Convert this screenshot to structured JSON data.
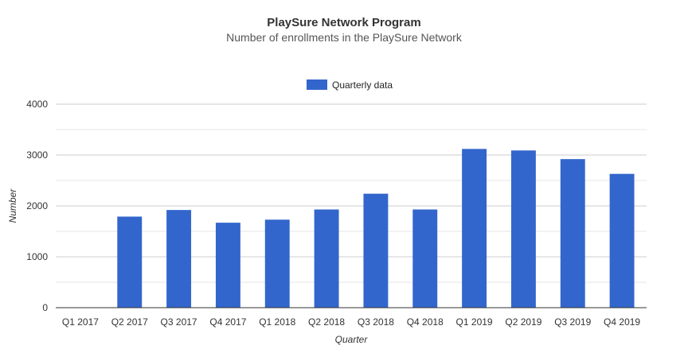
{
  "chart_data": {
    "type": "bar",
    "title": "PlaySure Network Program",
    "subtitle": "Number of enrollments in the PlaySure Network",
    "xlabel": "Quarter",
    "ylabel": "Number",
    "ylim": [
      0,
      4000
    ],
    "yticks": [
      0,
      1000,
      2000,
      3000,
      4000
    ],
    "grid": true,
    "legend_position": "top",
    "categories": [
      "Q1 2017",
      "Q2 2017",
      "Q3 2017",
      "Q4 2017",
      "Q1 2018",
      "Q2 2018",
      "Q3 2018",
      "Q4 2018",
      "Q1 2019",
      "Q2 2019",
      "Q3 2019",
      "Q4 2019"
    ],
    "series": [
      {
        "name": "Quarterly data",
        "color": "#3366cc",
        "values": [
          0,
          1790,
          1920,
          1670,
          1730,
          1930,
          2240,
          1930,
          3120,
          3090,
          2920,
          2630
        ]
      }
    ]
  },
  "colors": {
    "title": "#333333",
    "subtitle": "#555555",
    "axis_text": "#333333",
    "gridline": "#e6e6e6",
    "baseline": "#333333"
  }
}
